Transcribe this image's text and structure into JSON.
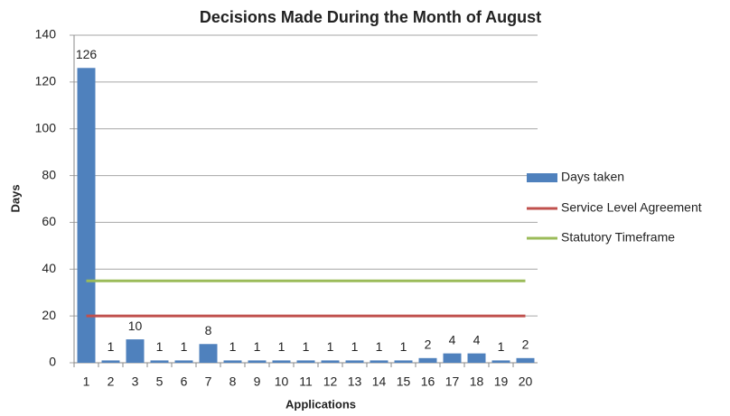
{
  "chart_data": {
    "type": "bar",
    "title": "Decisions Made During the Month of August",
    "x_label": "Applications",
    "y_label": "Days",
    "categories": [
      "1",
      "2",
      "3",
      "5",
      "6",
      "7",
      "8",
      "9",
      "10",
      "11",
      "12",
      "13",
      "14",
      "15",
      "16",
      "17",
      "18",
      "19",
      "20"
    ],
    "series": [
      {
        "name": "Days taken",
        "type": "bar",
        "color": "#4f81bd",
        "values": [
          126,
          1,
          10,
          1,
          1,
          8,
          1,
          1,
          1,
          1,
          1,
          1,
          1,
          1,
          2,
          4,
          4,
          1,
          2
        ]
      },
      {
        "name": "Service Level Agreement",
        "type": "line",
        "color": "#c0504d",
        "values": [
          20,
          20,
          20,
          20,
          20,
          20,
          20,
          20,
          20,
          20,
          20,
          20,
          20,
          20,
          20,
          20,
          20,
          20,
          20
        ]
      },
      {
        "name": "Statutory Timeframe",
        "type": "line",
        "color": "#9bbb59",
        "values": [
          35,
          35,
          35,
          35,
          35,
          35,
          35,
          35,
          35,
          35,
          35,
          35,
          35,
          35,
          35,
          35,
          35,
          35,
          35
        ]
      }
    ],
    "ylim": [
      0,
      140
    ],
    "yticks": [
      0,
      20,
      40,
      60,
      80,
      100,
      120,
      140
    ],
    "grid": true,
    "legend": "right",
    "data_labels": true
  }
}
